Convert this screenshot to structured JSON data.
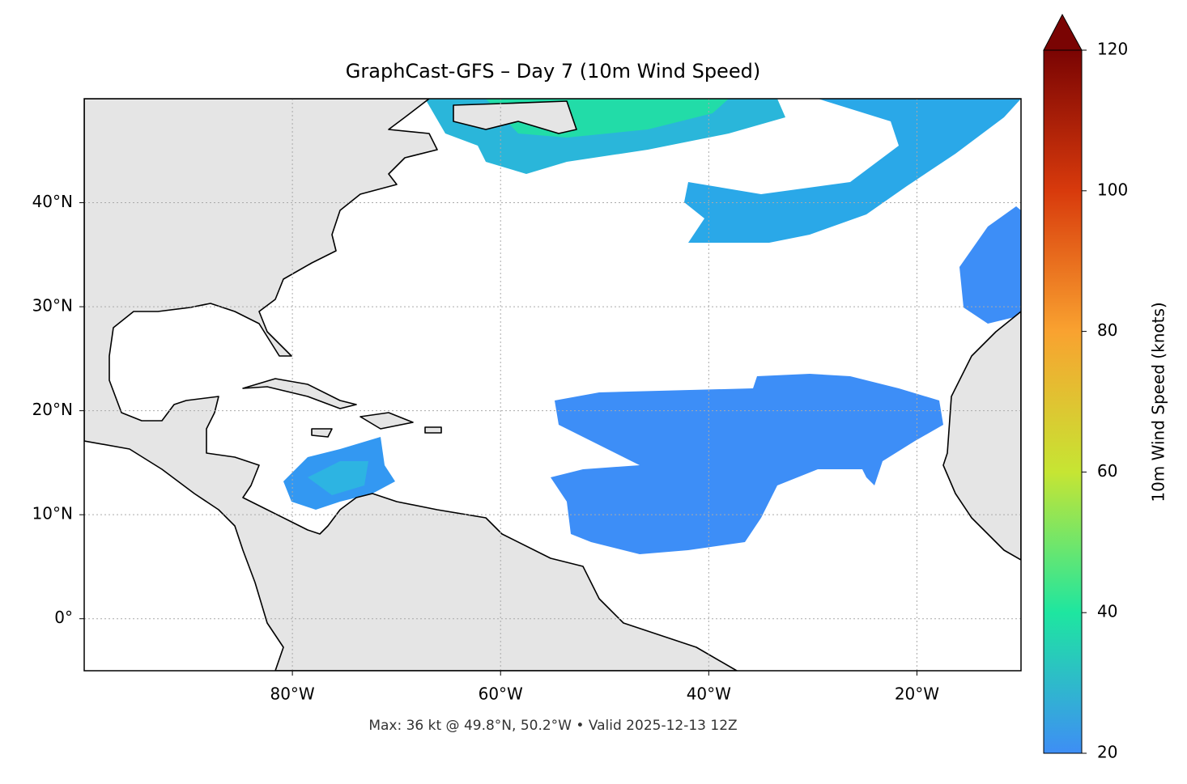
{
  "chart_data": {
    "type": "map",
    "title": "GraphCast-GFS – Day 7 (10m Wind Speed)",
    "note": "Max: 36 kt @ 49.8°N, 50.2°W • Valid 2025-12-13 12Z",
    "xlim": [
      -100,
      -10
    ],
    "ylim": [
      -5,
      50
    ],
    "xticks": [
      {
        "value": -80,
        "label": "80°W"
      },
      {
        "value": -60,
        "label": "60°W"
      },
      {
        "value": -40,
        "label": "40°W"
      },
      {
        "value": -20,
        "label": "20°W"
      }
    ],
    "yticks": [
      {
        "value": 0,
        "label": "0°"
      },
      {
        "value": 10,
        "label": "10°N"
      },
      {
        "value": 20,
        "label": "20°N"
      },
      {
        "value": 30,
        "label": "30°N"
      },
      {
        "value": 40,
        "label": "40°N"
      }
    ],
    "grid": true,
    "colorbar": {
      "label": "10m Wind Speed (knots)",
      "lim": [
        20,
        120
      ],
      "ticks": [
        20,
        40,
        60,
        80,
        100,
        120
      ],
      "colors": [
        "#3e8ef5",
        "#1ee6a0",
        "#c6e533",
        "#f9a230",
        "#d83a0c",
        "#7a0403"
      ],
      "extend": "max"
    }
  }
}
